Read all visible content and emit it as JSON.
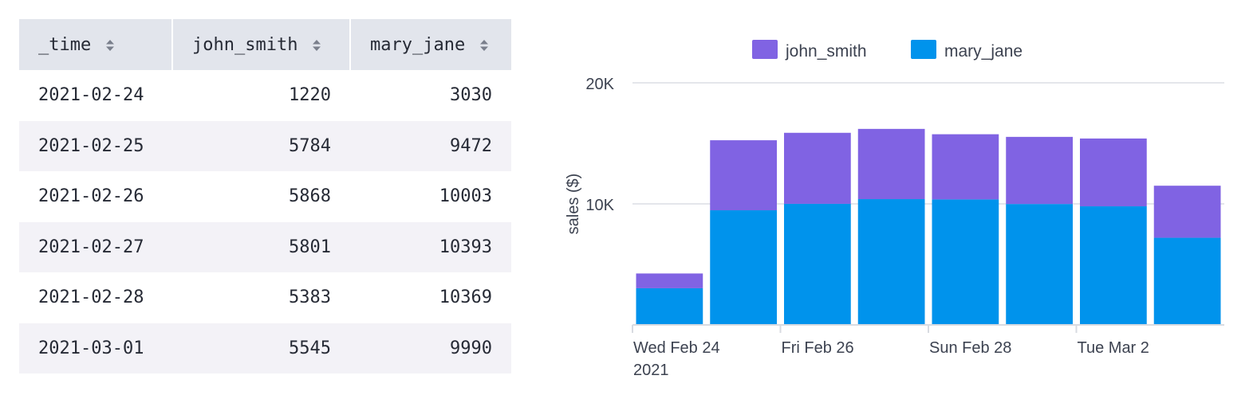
{
  "table": {
    "headers": [
      "_time",
      "john_smith",
      "mary_jane"
    ],
    "rows": [
      [
        "2021-02-24",
        "1220",
        "3030"
      ],
      [
        "2021-02-25",
        "5784",
        "9472"
      ],
      [
        "2021-02-26",
        "5868",
        "10003"
      ],
      [
        "2021-02-27",
        "5801",
        "10393"
      ],
      [
        "2021-02-28",
        "5383",
        "10369"
      ],
      [
        "2021-03-01",
        "5545",
        "9990"
      ]
    ]
  },
  "chart_data": {
    "type": "bar",
    "stacked": true,
    "categories": [
      "2021-02-24",
      "2021-02-25",
      "2021-02-26",
      "2021-02-27",
      "2021-02-28",
      "2021-03-01",
      "2021-03-02",
      "2021-03-03"
    ],
    "series": [
      {
        "name": "mary_jane",
        "color": "#0093ec",
        "values": [
          3030,
          9472,
          10003,
          10393,
          10369,
          9990,
          9800,
          7200
        ]
      },
      {
        "name": "john_smith",
        "color": "#8063e3",
        "values": [
          1220,
          5784,
          5868,
          5801,
          5383,
          5545,
          5600,
          4300
        ]
      }
    ],
    "legend": {
      "position": "top",
      "items": [
        {
          "label": "john_smith",
          "color": "#8063e3"
        },
        {
          "label": "mary_jane",
          "color": "#0093ec"
        }
      ]
    },
    "ylabel": "sales ($)",
    "ylim": [
      0,
      20000
    ],
    "yticks": [
      {
        "value": 10000,
        "label": "10K"
      },
      {
        "value": 20000,
        "label": "20K"
      }
    ],
    "xticks": [
      {
        "index": 0,
        "label": "Wed Feb 24",
        "sublabel": "2021"
      },
      {
        "index": 2,
        "label": "Fri Feb 26"
      },
      {
        "index": 4,
        "label": "Sun Feb 28"
      },
      {
        "index": 6,
        "label": "Tue Mar 2"
      }
    ],
    "grid": true
  }
}
